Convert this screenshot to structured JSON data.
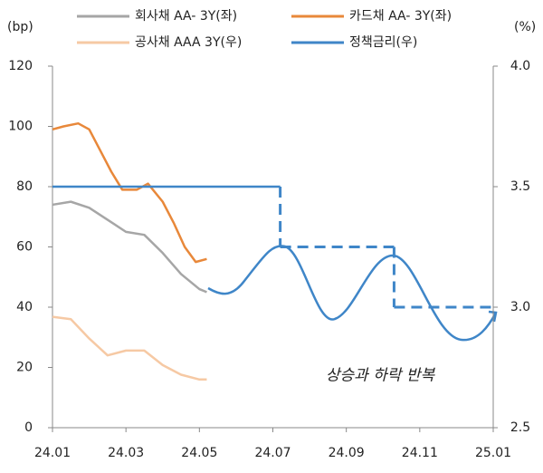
{
  "chart_data": {
    "type": "line",
    "y_label": "(bp)",
    "y2_label": "(%)",
    "annotation": "상승과 하락 반복",
    "xlim": [
      0,
      12
    ],
    "xticks": [
      {
        "value": 0,
        "label": "24.01"
      },
      {
        "value": 2,
        "label": "24.03"
      },
      {
        "value": 4,
        "label": "24.05"
      },
      {
        "value": 6,
        "label": "24.07"
      },
      {
        "value": 8,
        "label": "24.09"
      },
      {
        "value": 10,
        "label": "24.11"
      },
      {
        "value": 12,
        "label": "25.01"
      }
    ],
    "ylim": [
      0,
      120
    ],
    "yticks": [
      0,
      20,
      40,
      60,
      80,
      100,
      120
    ],
    "y2lim": [
      2.5,
      4.0
    ],
    "y2ticks": [
      2.5,
      {
        "value": 3,
        "label": "3.0"
      },
      3.5,
      {
        "value": 4,
        "label": "4.0"
      }
    ],
    "series": [
      {
        "name": "회사채 AA- 3Y(좌)",
        "color": "#a6a6a6",
        "axis": "y",
        "x": [
          0,
          0.5,
          1,
          1.5,
          2,
          2.5,
          3,
          3.5,
          4,
          4.2
        ],
        "values": [
          74,
          75,
          73,
          69,
          65,
          64,
          58,
          51,
          46,
          45
        ]
      },
      {
        "name": "카드채 AA- 3Y(좌)",
        "color": "#e8883a",
        "axis": "y",
        "x": [
          0,
          0.3,
          0.7,
          1,
          1.3,
          1.6,
          1.9,
          2.3,
          2.6,
          3,
          3.3,
          3.6,
          3.9,
          4.2
        ],
        "values": [
          99,
          100,
          101,
          99,
          92,
          85,
          79,
          79,
          81,
          75,
          68,
          60,
          55,
          56
        ]
      },
      {
        "name": "공사채 AAA 3Y(우)",
        "color": "#f6c9a4",
        "axis": "y2",
        "x": [
          0,
          0.5,
          1,
          1.5,
          2,
          2.5,
          3,
          3.5,
          4,
          4.2
        ],
        "values": [
          2.96,
          2.95,
          2.87,
          2.8,
          2.82,
          2.82,
          2.76,
          2.72,
          2.7,
          2.7
        ]
      },
      {
        "name": "정책금리(우)",
        "color": "#3f86c8",
        "axis": "y2",
        "x": [
          0,
          6.2,
          6.2,
          9.3,
          9.3,
          12
        ],
        "values": [
          3.5,
          3.5,
          3.25,
          3.25,
          3.0,
          3.0
        ],
        "segment_styles": [
          "solid",
          "dashed",
          "dashed",
          "dashed",
          "dashed"
        ]
      }
    ]
  }
}
